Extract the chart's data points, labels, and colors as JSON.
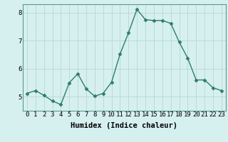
{
  "x": [
    0,
    1,
    2,
    3,
    4,
    5,
    6,
    7,
    8,
    9,
    10,
    11,
    12,
    13,
    14,
    15,
    16,
    17,
    18,
    19,
    20,
    21,
    22,
    23
  ],
  "y": [
    5.12,
    5.22,
    5.05,
    4.85,
    4.72,
    5.5,
    5.82,
    5.28,
    5.02,
    5.12,
    5.52,
    6.52,
    7.28,
    8.12,
    7.75,
    7.72,
    7.72,
    7.62,
    6.95,
    6.38,
    5.6,
    5.6,
    5.32,
    5.22
  ],
  "line_color": "#2e7d6e",
  "marker": "D",
  "marker_size": 2.5,
  "bg_color": "#d6f0ef",
  "grid_color": "#b8d8d4",
  "xlabel": "Humidex (Indice chaleur)",
  "ylim": [
    4.5,
    8.3
  ],
  "xlim": [
    -0.5,
    23.5
  ],
  "yticks": [
    5,
    6,
    7,
    8
  ],
  "xlabel_fontsize": 7.5,
  "tick_fontsize": 6.5,
  "line_width": 1.0,
  "spine_color": "#5a9a8a"
}
